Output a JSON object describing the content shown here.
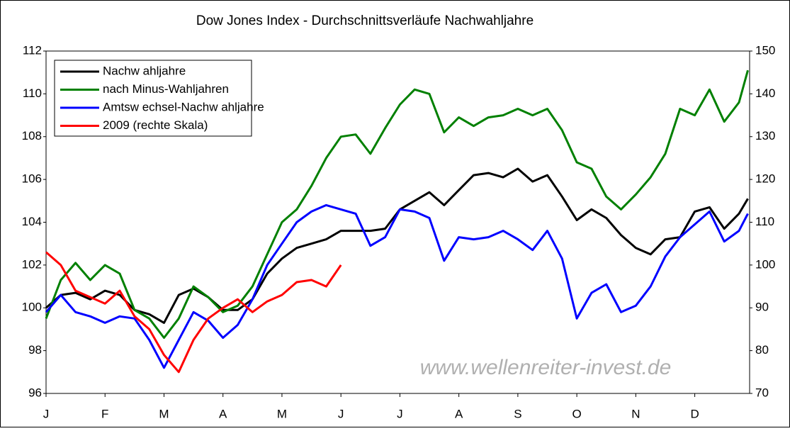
{
  "chart_data": {
    "type": "line",
    "title": "Dow Jones Index - Durchschnittsverläufe Nachwahljahre",
    "annotation": "www.wellenreiter-invest.de",
    "x": [
      0,
      0.25,
      0.5,
      0.75,
      1,
      1.25,
      1.5,
      1.75,
      2,
      2.25,
      2.5,
      2.75,
      3,
      3.25,
      3.5,
      3.75,
      4,
      4.25,
      4.5,
      4.75,
      5,
      5.25,
      5.5,
      5.75,
      6,
      6.25,
      6.5,
      6.75,
      7,
      7.25,
      7.5,
      7.75,
      8,
      8.25,
      8.5,
      8.75,
      9,
      9.25,
      9.5,
      9.75,
      10,
      10.25,
      10.5,
      10.75,
      11,
      11.25,
      11.5,
      11.75,
      11.9
    ],
    "xlim": [
      0,
      11.93
    ],
    "xticks": [
      {
        "value": 0,
        "label": "J"
      },
      {
        "value": 1,
        "label": "F"
      },
      {
        "value": 2,
        "label": "M"
      },
      {
        "value": 3,
        "label": "A"
      },
      {
        "value": 4,
        "label": "M"
      },
      {
        "value": 5,
        "label": "J"
      },
      {
        "value": 6,
        "label": "J"
      },
      {
        "value": 7,
        "label": "A"
      },
      {
        "value": 8,
        "label": "S"
      },
      {
        "value": 9,
        "label": "O"
      },
      {
        "value": 10,
        "label": "N"
      },
      {
        "value": 11,
        "label": "D"
      }
    ],
    "ylim": [
      96,
      112
    ],
    "yticks": [
      96,
      98,
      100,
      102,
      104,
      106,
      108,
      110,
      112
    ],
    "y2lim": [
      70,
      150
    ],
    "y2ticks": [
      70,
      80,
      90,
      100,
      110,
      120,
      130,
      140,
      150
    ],
    "grid": false,
    "legend": "upper left",
    "series": [
      {
        "name": "Nachw ahljahre",
        "color": "#000000",
        "values": [
          100.0,
          100.6,
          100.7,
          100.4,
          100.8,
          100.6,
          99.9,
          99.7,
          99.3,
          100.6,
          100.9,
          100.5,
          99.9,
          99.9,
          100.4,
          101.6,
          102.3,
          102.8,
          103.0,
          103.2,
          103.6,
          103.6,
          103.6,
          103.7,
          104.6,
          105.0,
          105.4,
          104.8,
          105.5,
          106.2,
          106.3,
          106.1,
          106.5,
          105.9,
          106.2,
          105.2,
          104.1,
          104.6,
          104.2,
          103.4,
          102.8,
          102.5,
          103.2,
          103.3,
          104.5,
          104.7,
          103.7,
          104.4,
          105.1
        ]
      },
      {
        "name": "nach Minus-Wahljahren",
        "color": "#008000",
        "values": [
          99.5,
          101.3,
          102.1,
          101.3,
          102.0,
          101.6,
          99.9,
          99.5,
          98.6,
          99.5,
          101.0,
          100.5,
          99.8,
          100.1,
          101.0,
          102.5,
          104.0,
          104.6,
          105.7,
          107.0,
          108.0,
          108.1,
          107.2,
          108.4,
          109.5,
          110.2,
          110.0,
          108.2,
          108.9,
          108.5,
          108.9,
          109.0,
          109.3,
          109.0,
          109.3,
          108.3,
          106.8,
          106.5,
          105.2,
          104.6,
          105.3,
          106.1,
          107.2,
          109.3,
          109.0,
          110.2,
          108.7,
          109.6,
          111.1
        ]
      },
      {
        "name": "Amtsw echsel-Nachw ahljahre",
        "color": "#0000ff",
        "values": [
          99.8,
          100.6,
          99.8,
          99.6,
          99.3,
          99.6,
          99.5,
          98.5,
          97.2,
          98.5,
          99.8,
          99.4,
          98.6,
          99.2,
          100.4,
          102.0,
          103.0,
          104.0,
          104.5,
          104.8,
          104.6,
          104.4,
          102.9,
          103.3,
          104.6,
          104.5,
          104.2,
          102.2,
          103.3,
          103.2,
          103.3,
          103.6,
          103.2,
          102.7,
          103.6,
          102.3,
          99.5,
          100.7,
          101.1,
          99.8,
          100.1,
          101.0,
          102.4,
          103.3,
          103.9,
          104.5,
          103.1,
          103.6,
          104.4
        ]
      },
      {
        "name": "2009 (rechte Skala)",
        "color": "#ff0000",
        "axis": "y2",
        "values": [
          103,
          100,
          94,
          92.5,
          91,
          94,
          88,
          85,
          79,
          75,
          82.5,
          87.5,
          90,
          92,
          89,
          91.5,
          93,
          96,
          96.5,
          95,
          100,
          null,
          null,
          null,
          null,
          null,
          null,
          null,
          null,
          null,
          null,
          null,
          null,
          null,
          null,
          null,
          null,
          null,
          null,
          null,
          null,
          null,
          null,
          null,
          null,
          null,
          null,
          null,
          null
        ]
      }
    ]
  }
}
